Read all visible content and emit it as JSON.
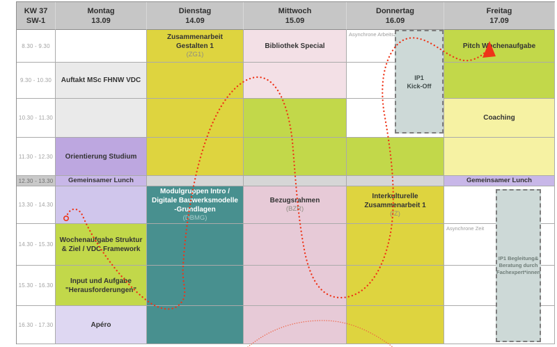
{
  "meta": {
    "week": "KW 37",
    "subweek": "SW-1"
  },
  "times": [
    "8.30 - 9.30",
    "9.30 - 10.30",
    "10.30 - 11.30",
    "11.30 - 12.30",
    "12.30 - 13.30",
    "13.30 - 14.30",
    "14.30 - 15.30",
    "15.30 - 16.30",
    "16.30 - 17.30"
  ],
  "lunch_row_index": 4,
  "days": [
    {
      "name": "Montag",
      "date": "13.09",
      "cells": [
        {
          "bg": "white"
        },
        {
          "bg": "blockGray",
          "title": "Auftakt MSc FHNW VDC"
        },
        {
          "bg": "blockGray"
        },
        {
          "bg": "purple",
          "title": "Orientierung Studium"
        },
        {
          "bg": "purpleSoft",
          "title": "Gemeinsamer Lunch",
          "lunch": true
        },
        {
          "bg": "purpleSoft2"
        },
        {
          "bg": "lime",
          "title": "Wochenaufgabe Struktur & Ziel / VDC Framework"
        },
        {
          "bg": "lime",
          "title": "Input und Aufgabe \"Herausforderungen\""
        },
        {
          "bg": "lavender",
          "title": "Apéro"
        }
      ]
    },
    {
      "name": "Dienstag",
      "date": "14.09",
      "cells": [
        {
          "bg": "yellow",
          "title": "Zusammenarbeit Gestalten 1",
          "code": "(ZG1)"
        },
        {
          "bg": "yellow"
        },
        {
          "bg": "yellow"
        },
        {
          "bg": "yellow"
        },
        {
          "bg": "grayCell",
          "lunch": true
        },
        {
          "bg": "teal",
          "title": "Modulgruppen Intro / Digitale Bauwerksmodelle -Grundlagen",
          "code": "(DBMG)",
          "light": true
        },
        {
          "bg": "teal"
        },
        {
          "bg": "teal"
        },
        {
          "bg": "teal"
        }
      ]
    },
    {
      "name": "Mittwoch",
      "date": "15.09",
      "cells": [
        {
          "bg": "pinkLight",
          "title": "Bibliothek Special"
        },
        {
          "bg": "pinkLight"
        },
        {
          "bg": "lime"
        },
        {
          "bg": "lime"
        },
        {
          "bg": "grayCell",
          "lunch": true
        },
        {
          "bg": "pinkDark",
          "title": "Bezugsrahmen",
          "code": "(BZR)"
        },
        {
          "bg": "pinkDark"
        },
        {
          "bg": "pinkDark"
        },
        {
          "bg": "pinkDark"
        }
      ]
    },
    {
      "name": "Donnertag",
      "date": "16.09",
      "cells": [
        {
          "bg": "white",
          "note": "Asynchrone Arbeitszeit"
        },
        {
          "bg": "white"
        },
        {
          "bg": "white"
        },
        {
          "bg": "lime"
        },
        {
          "bg": "grayCell",
          "lunch": true
        },
        {
          "bg": "yellow",
          "title": "Interkulturelle Zusammenarbeit 1",
          "code": "(IZ)"
        },
        {
          "bg": "yellow"
        },
        {
          "bg": "yellow"
        },
        {
          "bg": "yellow"
        }
      ]
    },
    {
      "name": "Freitag",
      "date": "17.09",
      "cells": [
        {
          "bg": "lime",
          "title": "Pitch Wochenaufgabe"
        },
        {
          "bg": "lime"
        },
        {
          "bg": "paleYellow",
          "title": "Coaching"
        },
        {
          "bg": "paleYellow"
        },
        {
          "bg": "purpleSoft",
          "title": "Gemeinsamer Lunch",
          "lunch": true
        },
        {
          "bg": "white"
        },
        {
          "bg": "white",
          "note": "Asynchrone Zeit"
        },
        {
          "bg": "white"
        },
        {
          "bg": "white"
        }
      ]
    }
  ],
  "overlay_boxes": [
    {
      "id": "kickoff",
      "lines": [
        "IP1",
        "Kick-Off"
      ]
    },
    {
      "id": "begleitung",
      "lines": [
        "IP1  Begleitung&",
        "Beratung durch",
        "Fachexpert*innen"
      ]
    }
  ],
  "colors": {
    "white": "#ffffff",
    "headerGray": "#c6c6c6",
    "lunchTimeGray": "#c9c9c9",
    "blockGray": "#eaeaea",
    "grayCell": "#d6d6d6",
    "yellow": "#ded43f",
    "lime": "#c2d84a",
    "paleYellow": "#f6f2a3",
    "pinkLight": "#f3e0e6",
    "pinkDark": "#e7cad7",
    "teal": "#48908f",
    "purple": "#bda7e0",
    "purpleSoft": "#c8b7e8",
    "purpleSoft2": "#d0c6ec",
    "lavender": "#ded7f2",
    "dashedBoxFill": "#cdd9d7",
    "annotationRed": "#ee3418",
    "annotationOrange": "#ef6242"
  }
}
